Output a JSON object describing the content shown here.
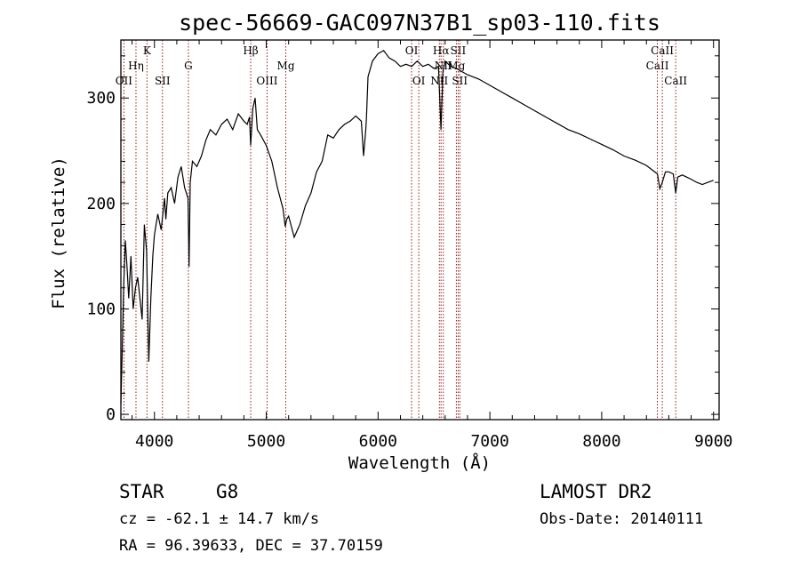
{
  "chart_data": {
    "type": "line",
    "title": "spec-56669-GAC097N37B1_sp03-110.fits",
    "xlabel": "Wavelength (Å)",
    "ylabel": "Flux (relative)",
    "xlim": [
      3700,
      9050
    ],
    "ylim": [
      -5,
      355
    ],
    "xticks": [
      4000,
      5000,
      6000,
      7000,
      8000,
      9000
    ],
    "yticks": [
      0,
      100,
      200,
      300
    ],
    "xticks_labels": [
      "4000",
      "5000",
      "6000",
      "7000",
      "8000",
      "9000"
    ],
    "yticks_labels": [
      "0",
      "100",
      "200",
      "300"
    ],
    "series": [
      {
        "x": [
          3700,
          3712,
          3725,
          3740,
          3755,
          3770,
          3790,
          3810,
          3830,
          3850,
          3870,
          3890,
          3910,
          3930,
          3950,
          3968,
          3985,
          4000,
          4030,
          4060,
          4090,
          4102,
          4120,
          4150,
          4180,
          4210,
          4240,
          4270,
          4300,
          4310,
          4320,
          4340,
          4380,
          4420,
          4460,
          4500,
          4550,
          4600,
          4650,
          4700,
          4750,
          4800,
          4830,
          4850,
          4861,
          4880,
          4900,
          4920,
          4950,
          5000,
          5050,
          5100,
          5150,
          5170,
          5183,
          5200,
          5250,
          5300,
          5350,
          5400,
          5450,
          5500,
          5550,
          5600,
          5650,
          5700,
          5750,
          5800,
          5850,
          5870,
          5890,
          5896,
          5910,
          5950,
          6000,
          6050,
          6100,
          6150,
          6200,
          6250,
          6300,
          6350,
          6400,
          6450,
          6500,
          6540,
          6563,
          6580,
          6600,
          6650,
          6700,
          6750,
          6800,
          6900,
          7000,
          7100,
          7200,
          7300,
          7400,
          7500,
          7600,
          7700,
          7800,
          7900,
          8000,
          8100,
          8200,
          8300,
          8400,
          8498,
          8520,
          8542,
          8570,
          8600,
          8640,
          8662,
          8680,
          8720,
          8760,
          8800,
          8850,
          8900,
          8950,
          9000
        ],
        "y": [
          10,
          60,
          120,
          165,
          140,
          110,
          150,
          100,
          120,
          130,
          110,
          90,
          180,
          155,
          50,
          110,
          150,
          170,
          190,
          175,
          205,
          185,
          210,
          215,
          200,
          225,
          235,
          215,
          205,
          140,
          220,
          240,
          235,
          245,
          260,
          270,
          265,
          275,
          280,
          270,
          285,
          278,
          275,
          282,
          255,
          290,
          300,
          270,
          265,
          255,
          240,
          215,
          195,
          178,
          185,
          188,
          168,
          180,
          198,
          210,
          230,
          240,
          265,
          262,
          270,
          275,
          278,
          283,
          278,
          245,
          270,
          280,
          320,
          335,
          342,
          345,
          338,
          335,
          330,
          332,
          330,
          335,
          330,
          332,
          328,
          330,
          270,
          325,
          335,
          330,
          328,
          325,
          322,
          318,
          312,
          306,
          300,
          294,
          288,
          282,
          276,
          270,
          266,
          261,
          256,
          251,
          245,
          241,
          236,
          228,
          214,
          220,
          230,
          230,
          228,
          210,
          225,
          227,
          225,
          223,
          220,
          218,
          220,
          222
        ]
      }
    ],
    "line_markers": [
      {
        "name": "OII",
        "wavelength": 3727,
        "row": 3
      },
      {
        "name": "Hη",
        "wavelength": 3835,
        "row": 2
      },
      {
        "name": "K",
        "wavelength": 3933,
        "row": 1
      },
      {
        "name": "SII",
        "wavelength": 4072,
        "row": 3
      },
      {
        "name": "G",
        "wavelength": 4304,
        "row": 2
      },
      {
        "name": "Hβ",
        "wavelength": 4861,
        "row": 1
      },
      {
        "name": "OIII",
        "wavelength": 5007,
        "row": 3
      },
      {
        "name": "Mg",
        "wavelength": 5175,
        "row": 2
      },
      {
        "name": "OI",
        "wavelength": 6300,
        "row": 1
      },
      {
        "name": "OI",
        "wavelength": 6364,
        "row": 3
      },
      {
        "name": "NII",
        "wavelength": 6548,
        "row": 3
      },
      {
        "name": "Hα",
        "wavelength": 6563,
        "row": 1
      },
      {
        "name": "NII",
        "wavelength": 6584,
        "row": 2
      },
      {
        "name": "SII",
        "wavelength": 6716,
        "row": 1
      },
      {
        "name": "Mg",
        "wavelength": 6700,
        "row": 2
      },
      {
        "name": "SII",
        "wavelength": 6731,
        "row": 3
      },
      {
        "name": "CaII",
        "wavelength": 8498,
        "row": 2
      },
      {
        "name": "CaII",
        "wavelength": 8542,
        "row": 1
      },
      {
        "name": "CaII",
        "wavelength": 8662,
        "row": 3
      }
    ],
    "colors": {
      "spectrum": "#000000",
      "marker": "#8b0000",
      "axis": "#000000"
    },
    "grid": false,
    "legend": "none"
  },
  "info": {
    "object_class": "STAR",
    "subclass": "G8",
    "survey": "LAMOST DR2",
    "velocity": "cz = -62.1 ± 14.7 km/s",
    "obs_date": "Obs-Date: 20140111",
    "coords": "RA =  96.39633, DEC =  37.70159"
  }
}
